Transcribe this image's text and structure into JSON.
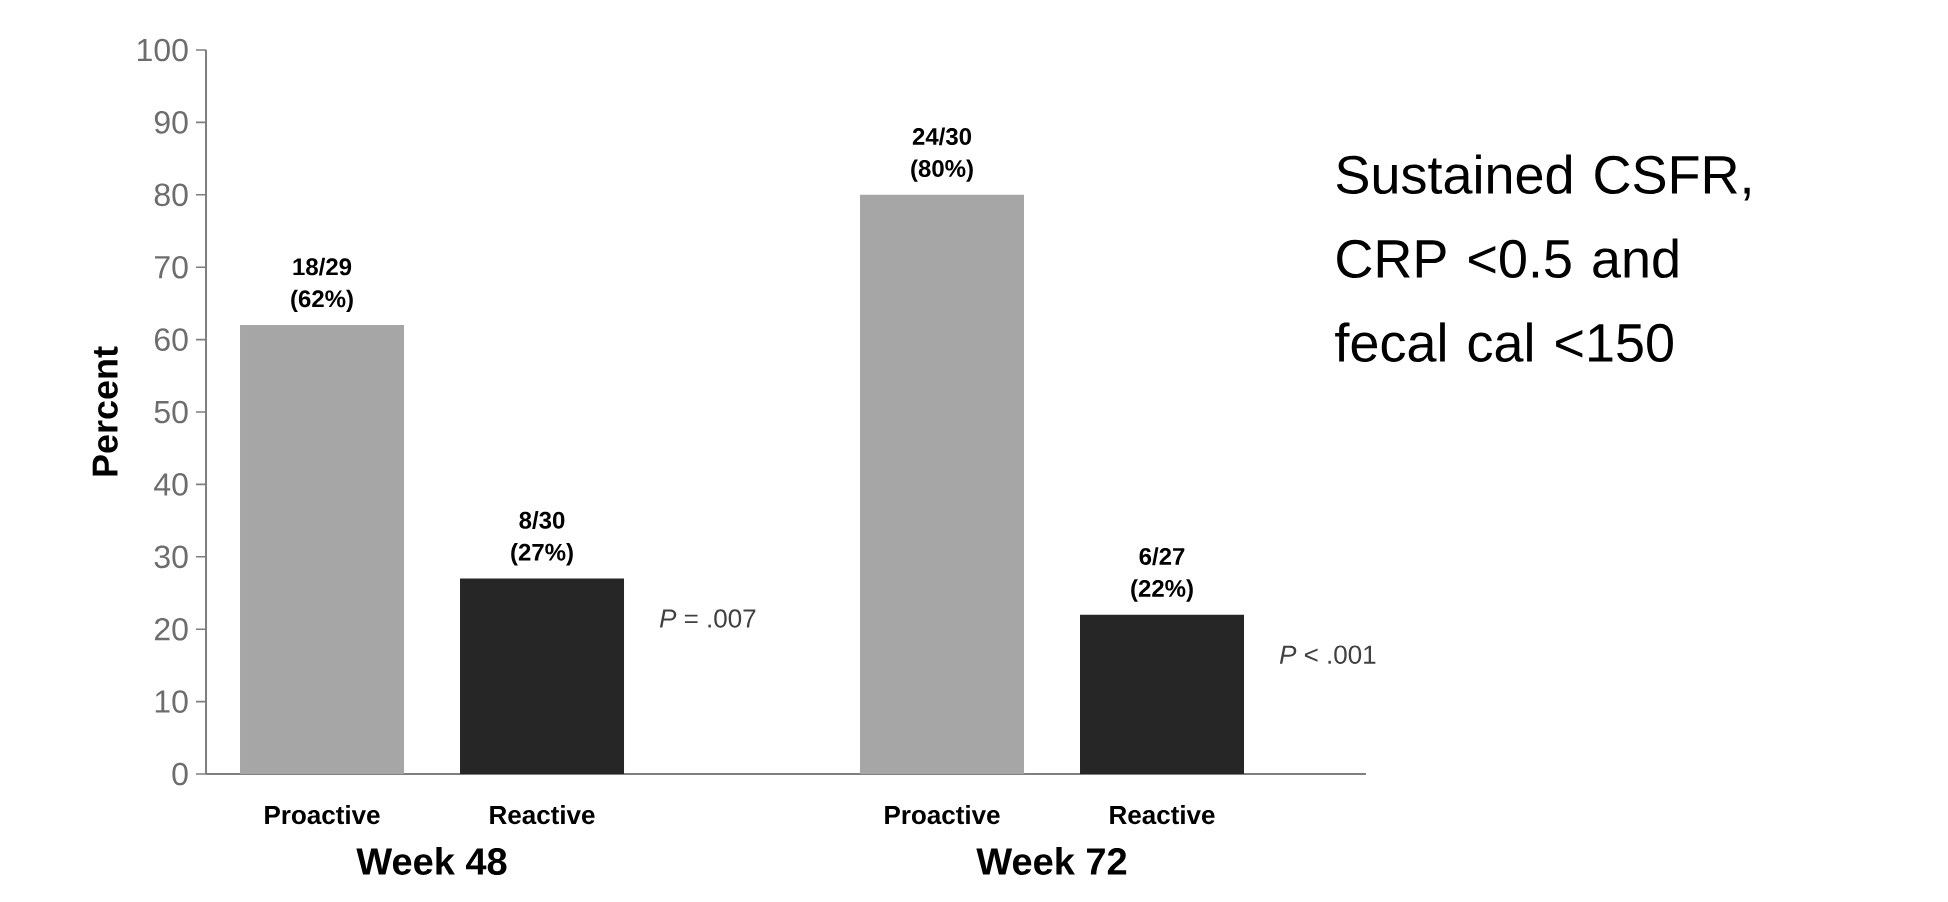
{
  "chart_data": {
    "type": "bar",
    "ylabel": "Percent",
    "categories": [
      "Week 48",
      "Week 72"
    ],
    "series": [
      {
        "name": "Proactive",
        "color": "#a6a6a6",
        "values": [
          62,
          80
        ],
        "value_labels": [
          "18/29 (62%)",
          "24/30 (80%)"
        ]
      },
      {
        "name": "Reactive",
        "color": "#262626",
        "values": [
          27,
          22
        ],
        "value_labels": [
          "8/30 (27%)",
          "6/27 (22%)"
        ]
      }
    ],
    "ylim": [
      0,
      100
    ],
    "yticks": [
      0,
      10,
      20,
      30,
      40,
      50,
      60,
      70,
      80,
      90,
      100
    ],
    "annotations": [
      "*P* = .007",
      "*P* < .001",
      "Sustained CSFR, CRP <0.5 and fecal cal <150"
    ]
  }
}
